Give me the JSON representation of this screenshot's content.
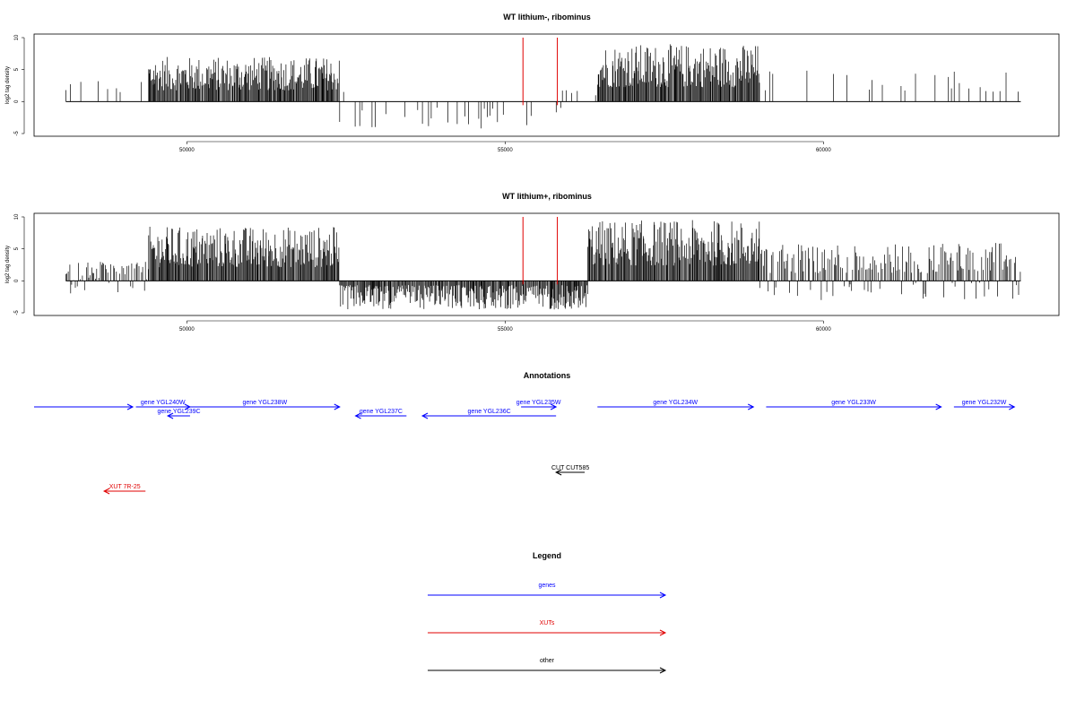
{
  "chart_data": [
    {
      "type": "bar",
      "title": "WT lithium-, ribominus",
      "ylabel": "log2 tag density",
      "xlabel": "",
      "xlim": [
        47600,
        63700
      ],
      "ylim": [
        -5,
        10
      ],
      "xticks": [
        "50000",
        "55000",
        "60000"
      ],
      "yticks": [
        "-5",
        "0",
        "5",
        "10"
      ],
      "grid": false,
      "data_range": [
        48100,
        63100
      ],
      "markers": [
        {
          "x": 55280,
          "y": 10,
          "color": "#e00000"
        },
        {
          "x": 55820,
          "y": 10,
          "color": "#e00000"
        }
      ],
      "segments": [
        {
          "from": 48100,
          "to": 49400,
          "kind": "sparse-pos",
          "max": 3.5
        },
        {
          "from": 49400,
          "to": 52400,
          "kind": "dense-pos",
          "max": 7
        },
        {
          "from": 52400,
          "to": 55900,
          "kind": "sparse-neg",
          "min": -4.5
        },
        {
          "from": 55900,
          "to": 56450,
          "kind": "sparse-pos",
          "max": 2
        },
        {
          "from": 56450,
          "to": 59000,
          "kind": "dense-pos",
          "max": 9
        },
        {
          "from": 59000,
          "to": 63100,
          "kind": "sparse-pos",
          "max": 5
        }
      ]
    },
    {
      "type": "bar",
      "title": "WT lithium+, ribominus",
      "ylabel": "log2 tag density",
      "xlabel": "",
      "xlim": [
        47600,
        63700
      ],
      "ylim": [
        -5,
        10
      ],
      "xticks": [
        "50000",
        "55000",
        "60000"
      ],
      "yticks": [
        "-5",
        "0",
        "5",
        "10"
      ],
      "grid": false,
      "data_range": [
        48100,
        63100
      ],
      "markers": [
        {
          "x": 55280,
          "y": 10,
          "color": "#e00000"
        },
        {
          "x": 55820,
          "y": 10,
          "color": "#e00000"
        }
      ],
      "segments": [
        {
          "from": 48100,
          "to": 49400,
          "kind": "mixed",
          "max": 3,
          "min": -2
        },
        {
          "from": 49400,
          "to": 52400,
          "kind": "dense-pos",
          "max": 8.5
        },
        {
          "from": 52400,
          "to": 56300,
          "kind": "dense-neg",
          "min": -4.5
        },
        {
          "from": 56300,
          "to": 59000,
          "kind": "dense-pos",
          "max": 9.5
        },
        {
          "from": 59000,
          "to": 63100,
          "kind": "mixed-pos",
          "max": 6,
          "min": -3
        }
      ]
    }
  ],
  "annotations": {
    "title": "Annotations",
    "genes_color": "#0000ff",
    "xuts_color": "#e00000",
    "other_color": "#000000",
    "items": [
      {
        "label": "",
        "from": 47600,
        "to": 49150,
        "strand": "+",
        "row": 0,
        "type": "gene"
      },
      {
        "label": "gene YGL240W",
        "from": 49200,
        "to": 50050,
        "strand": "+",
        "row": 0,
        "type": "gene"
      },
      {
        "label": "gene YGL239C",
        "from": 49700,
        "to": 50050,
        "strand": "-",
        "row": 1,
        "type": "gene"
      },
      {
        "label": "gene YGL238W",
        "from": 50050,
        "to": 52400,
        "strand": "+",
        "row": 0,
        "type": "gene"
      },
      {
        "label": "gene YGL237C",
        "from": 52650,
        "to": 53450,
        "strand": "-",
        "row": 1,
        "type": "gene"
      },
      {
        "label": "gene YGL236C",
        "from": 53700,
        "to": 55800,
        "strand": "-",
        "row": 1,
        "type": "gene"
      },
      {
        "label": "gene YGL235W",
        "from": 55250,
        "to": 55800,
        "strand": "+",
        "row": 0,
        "type": "gene"
      },
      {
        "label": "gene YGL234W",
        "from": 56450,
        "to": 58900,
        "strand": "+",
        "row": 0,
        "type": "gene"
      },
      {
        "label": "gene YGL233W",
        "from": 59100,
        "to": 61850,
        "strand": "+",
        "row": 0,
        "type": "gene"
      },
      {
        "label": "gene YGL232W",
        "from": 62050,
        "to": 63000,
        "strand": "+",
        "row": 0,
        "type": "gene"
      },
      {
        "label": "CUT CUT585",
        "from": 55800,
        "to": 56250,
        "strand": "-",
        "row": 2,
        "type": "other"
      },
      {
        "label": "XUT 7R-25",
        "from": 48700,
        "to": 49350,
        "strand": "-",
        "row": 3,
        "type": "xut"
      }
    ]
  },
  "legend": {
    "title": "Legend",
    "entries": [
      {
        "label": "genes",
        "color": "#0000ff"
      },
      {
        "label": "XUTs",
        "color": "#e00000"
      },
      {
        "label": "other",
        "color": "#000000"
      }
    ]
  }
}
